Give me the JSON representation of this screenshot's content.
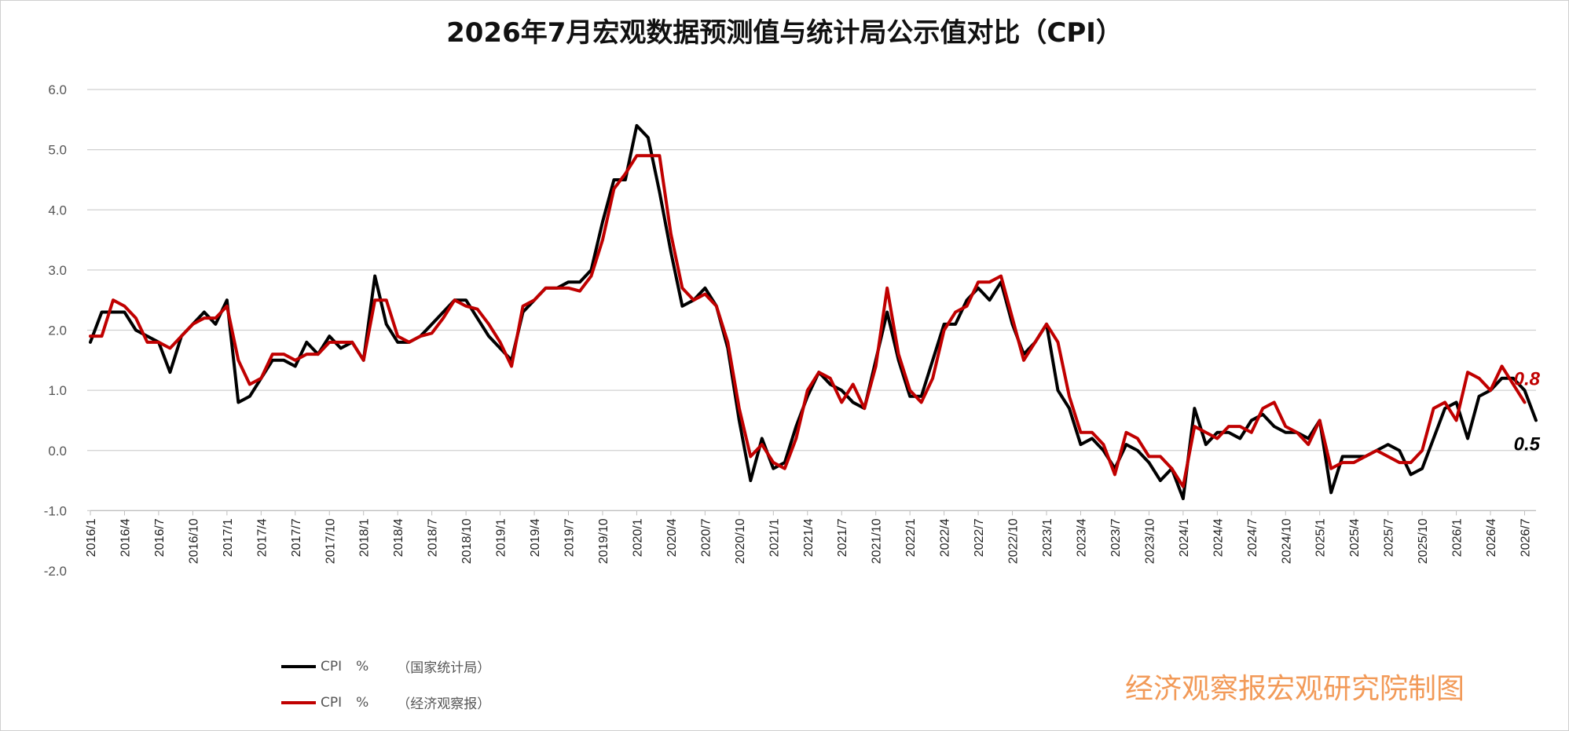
{
  "chart_data": {
    "type": "line",
    "title": "2026年7月宏观数据预测值与统计局公示值对比（CPI）",
    "ylim": [
      -2.0,
      6.0
    ],
    "yticks": [
      "6.0",
      "5.0",
      "4.0",
      "3.0",
      "2.0",
      "1.0",
      "0.0",
      "-1.0",
      "-2.0"
    ],
    "grid": true,
    "legend_position": "bottom-left",
    "xtick_labels": [
      "2016/1",
      "2016/4",
      "2016/7",
      "2016/10",
      "2017/1",
      "2017/4",
      "2017/7",
      "2017/10",
      "2018/1",
      "2018/4",
      "2018/7",
      "2018/10",
      "2019/1",
      "2019/4",
      "2019/7",
      "2019/10",
      "2020/1",
      "2020/4",
      "2020/7",
      "2020/10",
      "2021/1",
      "2021/4",
      "2021/7",
      "2021/10",
      "2022/1",
      "2022/4",
      "2022/7",
      "2022/10",
      "2023/1",
      "2023/4",
      "2023/7",
      "2023/10",
      "2024/1",
      "2024/4",
      "2024/7",
      "2024/10",
      "2025/1",
      "2025/4",
      "2025/7",
      "2025/10",
      "2026/1",
      "2026/4",
      "2026/7"
    ],
    "series": [
      {
        "name": "CPI　%　（国家统计局）",
        "color": "#000000",
        "values": [
          1.8,
          2.3,
          2.3,
          2.3,
          2.0,
          1.9,
          1.8,
          1.3,
          1.9,
          2.1,
          2.3,
          2.1,
          2.5,
          0.8,
          0.9,
          1.2,
          1.5,
          1.5,
          1.4,
          1.8,
          1.6,
          1.9,
          1.7,
          1.8,
          1.5,
          2.9,
          2.1,
          1.8,
          1.8,
          1.9,
          2.1,
          2.3,
          2.5,
          2.5,
          2.2,
          1.9,
          1.7,
          1.5,
          2.3,
          2.5,
          2.7,
          2.7,
          2.8,
          2.8,
          3.0,
          3.8,
          4.5,
          4.5,
          5.4,
          5.2,
          4.3,
          3.3,
          2.4,
          2.5,
          2.7,
          2.4,
          1.7,
          0.5,
          -0.5,
          0.2,
          -0.3,
          -0.2,
          0.4,
          0.9,
          1.3,
          1.1,
          1.0,
          0.8,
          0.7,
          1.5,
          2.3,
          1.5,
          0.9,
          0.9,
          1.5,
          2.1,
          2.1,
          2.5,
          2.7,
          2.5,
          2.8,
          2.1,
          1.6,
          1.8,
          2.1,
          1.0,
          0.7,
          0.1,
          0.2,
          0.0,
          -0.3,
          0.1,
          0.0,
          -0.2,
          -0.5,
          -0.3,
          -0.8,
          0.7,
          0.1,
          0.3,
          0.3,
          0.2,
          0.5,
          0.6,
          0.4,
          0.3,
          0.3,
          0.2,
          0.5,
          -0.7,
          -0.1,
          -0.1,
          -0.1,
          0.0,
          0.1,
          0.0,
          -0.4,
          -0.3,
          0.2,
          0.7,
          0.8,
          0.2,
          0.9,
          1.0,
          1.2,
          1.2,
          1.0,
          0.5
        ]
      },
      {
        "name": "CPI　%　（经济观察报）",
        "color": "#c00000",
        "values": [
          1.9,
          1.9,
          2.5,
          2.4,
          2.2,
          1.8,
          1.8,
          1.7,
          1.9,
          2.1,
          2.2,
          2.2,
          2.4,
          1.5,
          1.1,
          1.2,
          1.6,
          1.6,
          1.5,
          1.6,
          1.6,
          1.8,
          1.8,
          1.8,
          1.5,
          2.5,
          2.5,
          1.9,
          1.8,
          1.9,
          1.95,
          2.2,
          2.5,
          2.4,
          2.35,
          2.1,
          1.8,
          1.4,
          2.4,
          2.5,
          2.7,
          2.7,
          2.7,
          2.65,
          2.9,
          3.5,
          4.35,
          4.6,
          4.9,
          4.9,
          4.9,
          3.6,
          2.7,
          2.5,
          2.6,
          2.4,
          1.8,
          0.7,
          -0.1,
          0.1,
          -0.2,
          -0.3,
          0.2,
          1.0,
          1.3,
          1.2,
          0.8,
          1.1,
          0.7,
          1.4,
          2.7,
          1.6,
          1.0,
          0.8,
          1.2,
          2.0,
          2.3,
          2.4,
          2.8,
          2.8,
          2.9,
          2.2,
          1.5,
          1.8,
          2.1,
          1.8,
          0.9,
          0.3,
          0.3,
          0.1,
          -0.4,
          0.3,
          0.2,
          -0.1,
          -0.1,
          -0.3,
          -0.6,
          0.4,
          0.3,
          0.2,
          0.4,
          0.4,
          0.3,
          0.7,
          0.8,
          0.4,
          0.3,
          0.1,
          0.5,
          -0.3,
          -0.2,
          -0.2,
          -0.1,
          0.0,
          -0.1,
          -0.2,
          -0.2,
          0.0,
          0.7,
          0.8,
          0.5,
          1.3,
          1.2,
          1.0,
          1.4,
          1.1,
          0.8
        ]
      }
    ],
    "annotations": [
      {
        "text": "0.8",
        "series": 1,
        "color": "#c00000"
      },
      {
        "text": "0.5",
        "series": 0,
        "color": "#000000"
      }
    ]
  },
  "legend": {
    "items": [
      {
        "label": "CPI",
        "unit": "%",
        "source": "（国家统计局）",
        "color": "#000000"
      },
      {
        "label": "CPI",
        "unit": "%",
        "source": "（经济观察报）",
        "color": "#c00000"
      }
    ]
  },
  "watermark": "经济观察报宏观研究院制图"
}
